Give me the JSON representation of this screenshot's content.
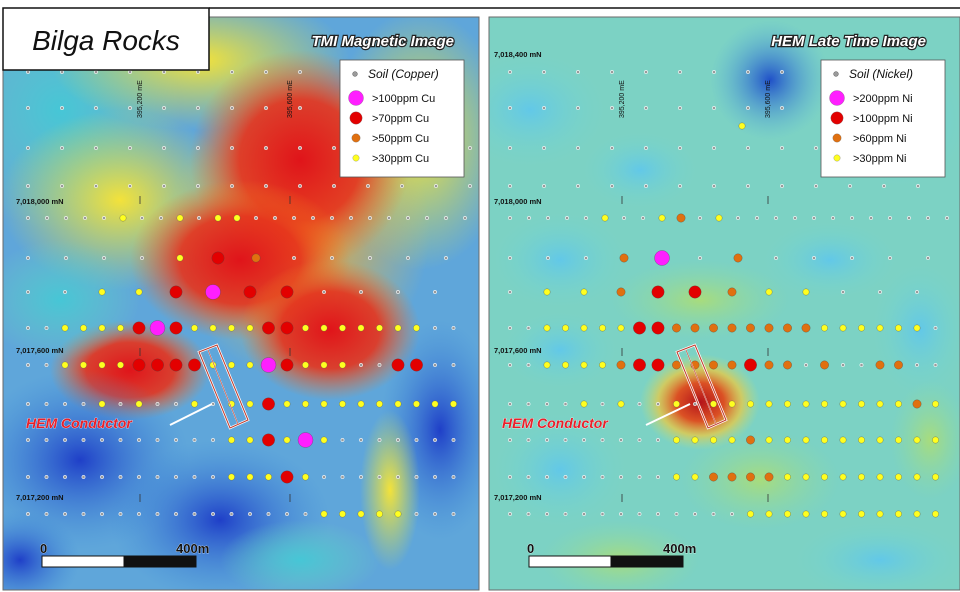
{
  "figure_title": "Bilga Rocks",
  "panels": [
    {
      "id": "tmi",
      "heading": "TMI Magnetic Image",
      "legend_title": "Soil (Copper)",
      "legend_items": [
        {
          "label": ">100ppm Cu",
          "class": "c4"
        },
        {
          "label": ">70ppm Cu",
          "class": "c3"
        },
        {
          "label": ">50ppm Cu",
          "class": "c2"
        },
        {
          "label": ">30ppm Cu",
          "class": "c1"
        }
      ],
      "easting_labels": [
        "395,200 mE",
        "395,600 mE"
      ],
      "northing_labels": [
        "7,018,000 mN",
        "7,017,600 mN",
        "7,017,200 mN"
      ],
      "top_northing_label": "",
      "conductor_label": "HEM Conductor",
      "scale_zero": "0",
      "scale_end": "400m"
    },
    {
      "id": "hem",
      "heading": "HEM Late Time Image",
      "legend_title": "Soil (Nickel)",
      "legend_items": [
        {
          "label": ">200ppm Ni",
          "class": "c4"
        },
        {
          "label": ">100ppm Ni",
          "class": "c3"
        },
        {
          "label": ">60ppm Ni",
          "class": "c2"
        },
        {
          "label": ">30ppm Ni",
          "class": "c1"
        }
      ],
      "easting_labels": [
        "395,200 mE",
        "395,600 mE"
      ],
      "northing_labels": [
        "7,018,000 mN",
        "7,017,600 mN",
        "7,017,200 mN"
      ],
      "top_northing_label": "7,018,400 mN",
      "conductor_label": "HEM Conductor",
      "scale_zero": "0",
      "scale_end": "400m"
    }
  ],
  "colors": {
    "c4": "#ff1fff",
    "c3": "#e30000",
    "c2": "#e07010",
    "c1": "#ffff20",
    "c0": "#9a9a9a",
    "conductor_label": "#e8202a"
  }
}
